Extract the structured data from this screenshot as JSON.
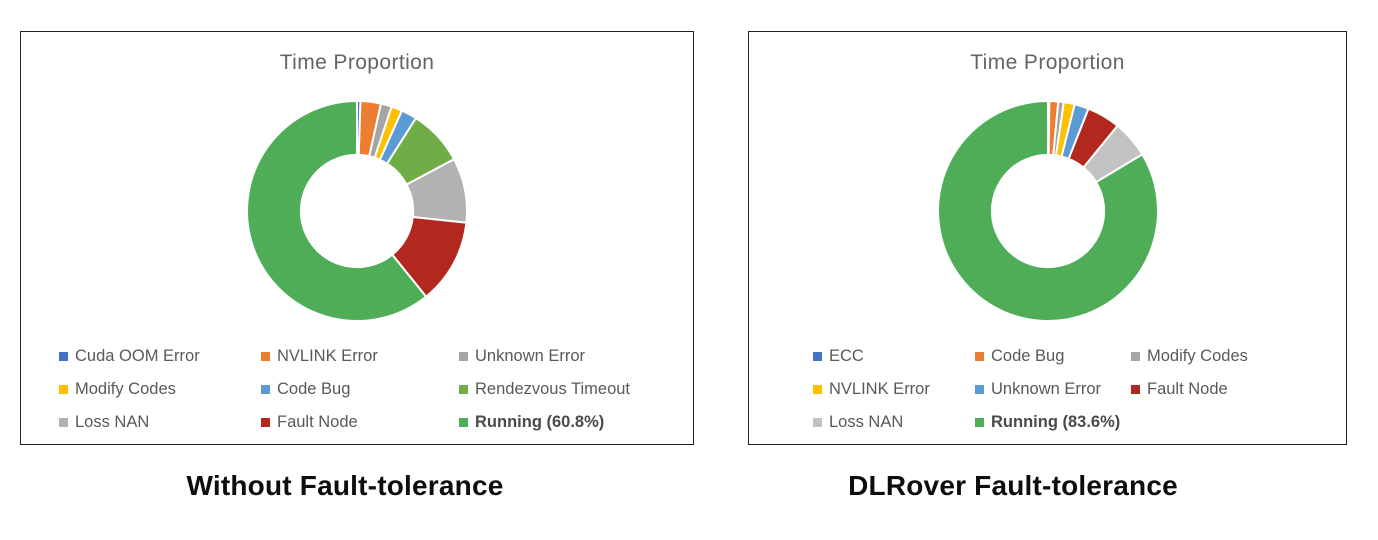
{
  "chart_data": [
    {
      "type": "pie",
      "subtype": "donut",
      "title": "Time Proportion",
      "caption": "Without Fault-tolerance",
      "donut_hole_ratio": 0.51,
      "legend_position": "bottom",
      "legend_columns": 3,
      "slices": [
        {
          "label": "Cuda OOM Error",
          "value": 0.5,
          "color": "#4472C4",
          "legend": "Cuda OOM Error"
        },
        {
          "label": "NVLINK Error",
          "value": 3.0,
          "color": "#ED7D31",
          "legend": "NVLINK Error"
        },
        {
          "label": "Unknown Error",
          "value": 1.6,
          "color": "#A5A5A5",
          "legend": "Unknown Error"
        },
        {
          "label": "Modify Codes",
          "value": 1.6,
          "color": "#FFC000",
          "legend": "Modify Codes"
        },
        {
          "label": "Code Bug",
          "value": 2.3,
          "color": "#5B9BD5",
          "legend": "Code Bug"
        },
        {
          "label": "Rendezvous Timeout",
          "value": 8.2,
          "color": "#70AD47",
          "legend": "Rendezvous Timeout"
        },
        {
          "label": "Loss NAN",
          "value": 9.5,
          "color": "#B2B2B2",
          "legend": "Loss NAN"
        },
        {
          "label": "Fault Node",
          "value": 12.5,
          "color": "#B3281E",
          "legend": "Fault Node"
        },
        {
          "label": "Running",
          "value": 60.8,
          "color": "#4FAD58",
          "legend": "Running (60.8%)",
          "bold": true
        }
      ]
    },
    {
      "type": "pie",
      "subtype": "donut",
      "title": "Time Proportion",
      "caption": "DLRover Fault-tolerance",
      "donut_hole_ratio": 0.51,
      "legend_position": "bottom",
      "legend_columns": 3,
      "slices": [
        {
          "label": "ECC",
          "value": 0.2,
          "color": "#4472C4",
          "legend": "ECC"
        },
        {
          "label": "Code Bug",
          "value": 1.3,
          "color": "#ED7D31",
          "legend": "Code Bug"
        },
        {
          "label": "Modify Codes",
          "value": 0.8,
          "color": "#A5A5A5",
          "legend": "Modify Codes"
        },
        {
          "label": "NVLINK Error",
          "value": 1.6,
          "color": "#FFC000",
          "legend": "NVLINK Error"
        },
        {
          "label": "Unknown Error",
          "value": 2.1,
          "color": "#5B9BD5",
          "legend": "Unknown Error"
        },
        {
          "label": "Fault Node",
          "value": 4.9,
          "color": "#B3281E",
          "legend": "Fault Node"
        },
        {
          "label": "Loss NAN",
          "value": 5.5,
          "color": "#C2C2C2",
          "legend": "Loss NAN"
        },
        {
          "label": "Running",
          "value": 83.6,
          "color": "#4FAD58",
          "legend": "Running (83.6%)",
          "bold": true
        }
      ]
    }
  ]
}
